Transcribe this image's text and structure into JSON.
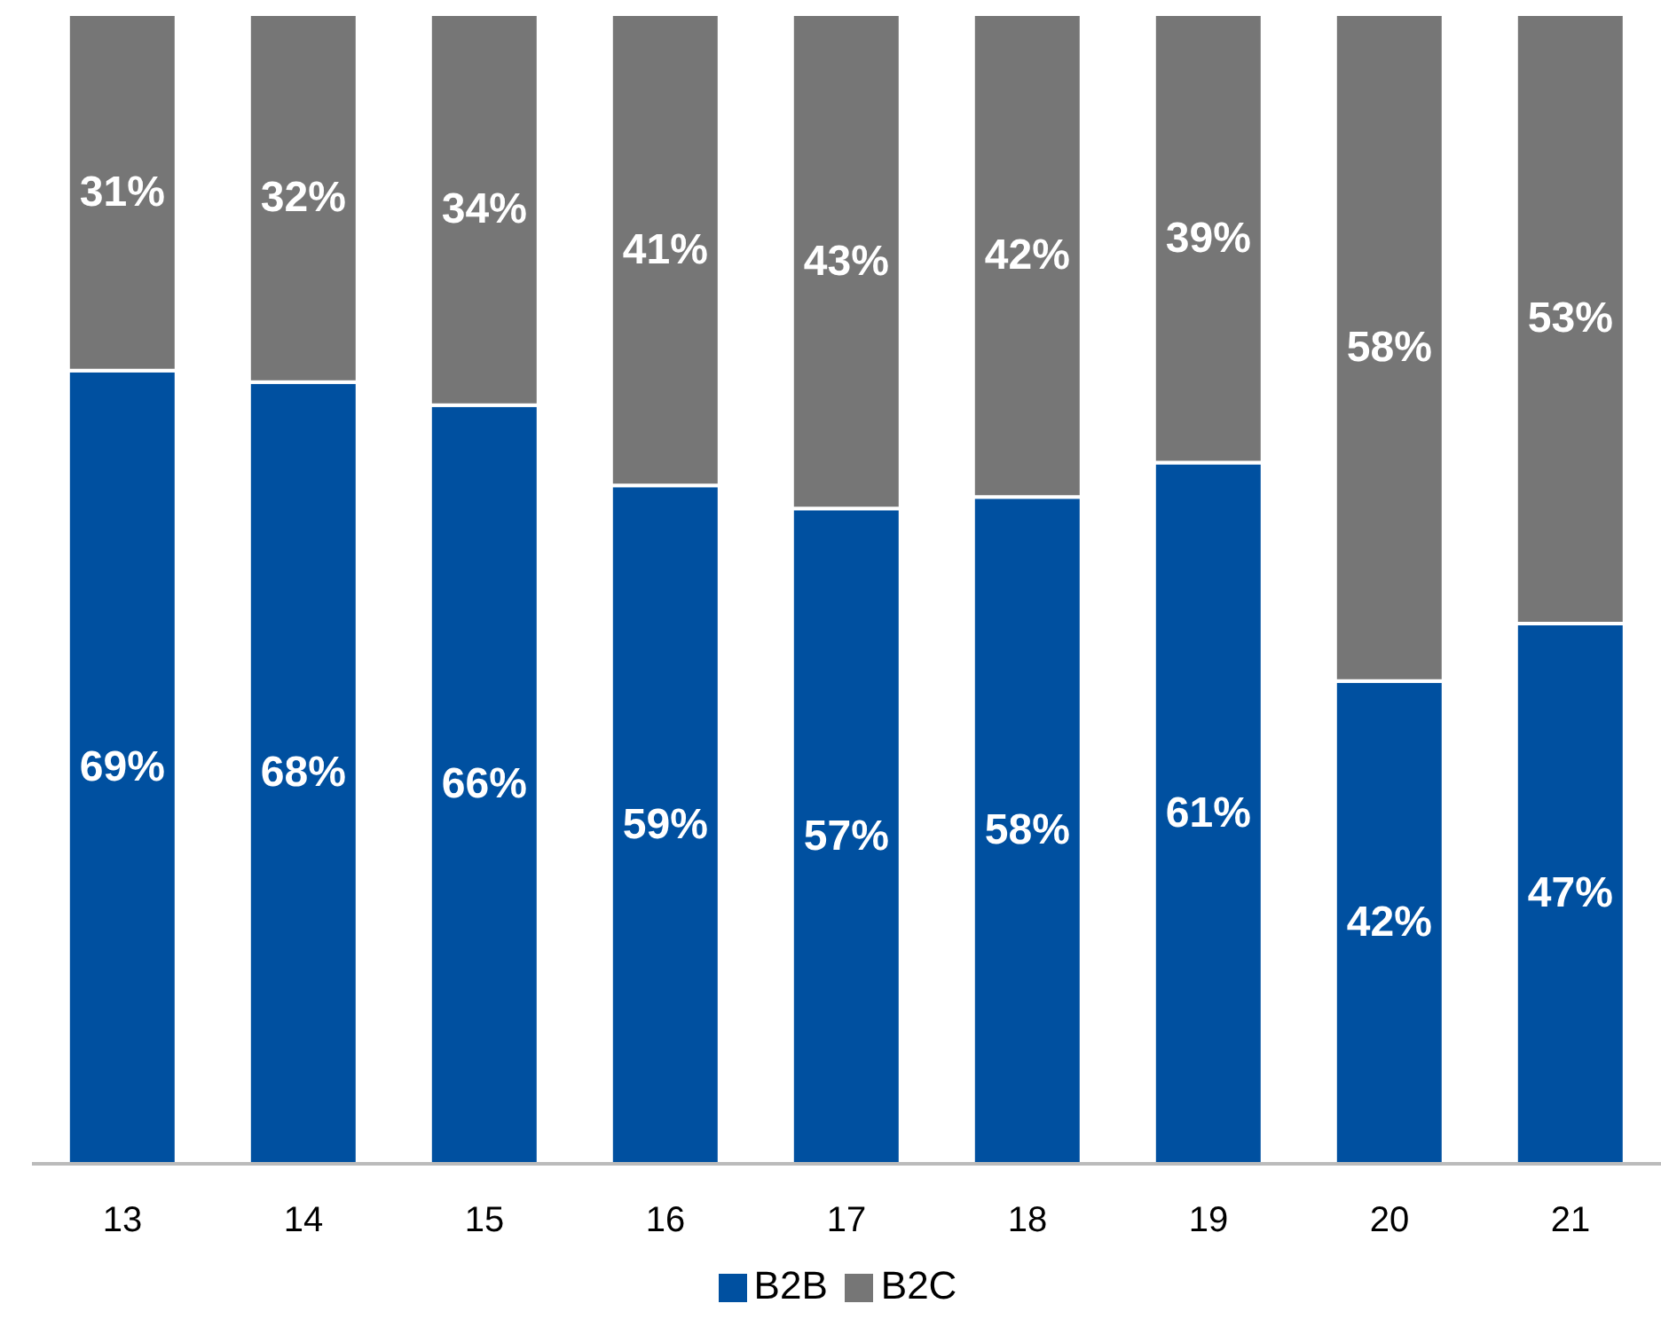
{
  "chart_data": {
    "type": "bar",
    "stacked": true,
    "categories": [
      "13",
      "14",
      "15",
      "16",
      "17",
      "18",
      "19",
      "20",
      "21"
    ],
    "series": [
      {
        "name": "B2B",
        "color": "#0050a0",
        "values": [
          69,
          68,
          66,
          59,
          57,
          58,
          61,
          42,
          47
        ],
        "value_labels": [
          "69%",
          "68%",
          "66%",
          "59%",
          "57%",
          "58%",
          "61%",
          "42%",
          "47%"
        ]
      },
      {
        "name": "B2C",
        "color": "#767676",
        "values": [
          31,
          32,
          34,
          41,
          43,
          42,
          39,
          58,
          53
        ],
        "value_labels": [
          "31%",
          "32%",
          "34%",
          "41%",
          "43%",
          "42%",
          "39%",
          "58%",
          "53%"
        ]
      }
    ],
    "legend": "bottom",
    "grid": false
  }
}
